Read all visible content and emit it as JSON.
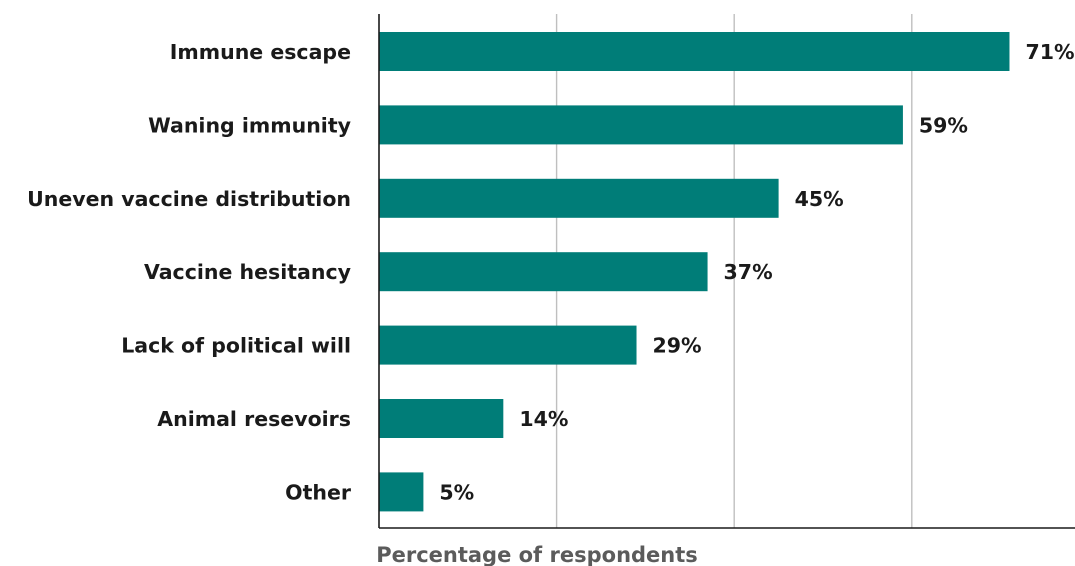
{
  "chart_data": {
    "type": "bar",
    "orientation": "horizontal",
    "title": "",
    "xlabel": "Percentage of respondents",
    "ylabel": "",
    "categories": [
      "Immune escape",
      "Waning immunity",
      "Uneven vaccine distribution",
      "Vaccine hesitancy",
      "Lack of political will",
      "Animal resevoirs",
      "Other"
    ],
    "values": [
      71,
      59,
      45,
      37,
      29,
      14,
      5
    ],
    "value_labels": [
      "71%",
      "59%",
      "45%",
      "37%",
      "29%",
      "14%",
      "5%"
    ],
    "unit": "%",
    "xlim": [
      0,
      80
    ],
    "gridlines_x": [
      20,
      40,
      60
    ],
    "grid": true,
    "legend": "none",
    "bar_color": "#007d78",
    "gridline_color": "#bfbfbf",
    "axis_color": "#1a1a1a"
  }
}
